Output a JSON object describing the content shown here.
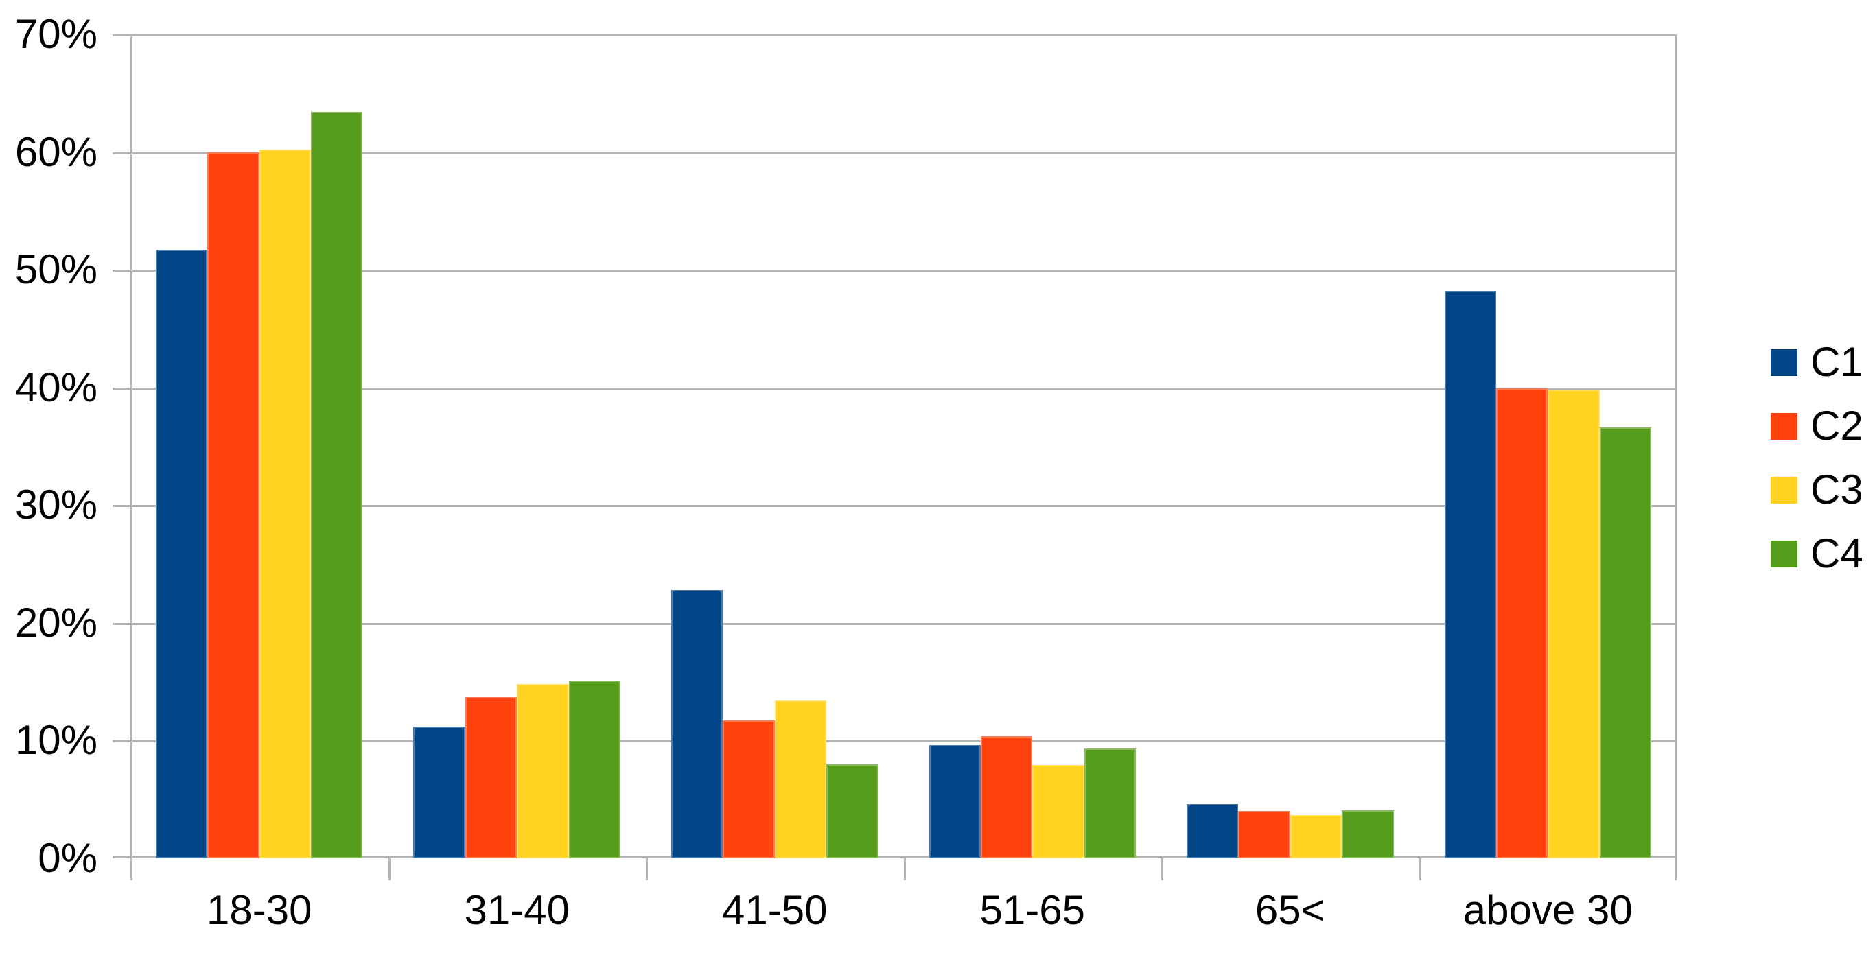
{
  "chart_data": {
    "type": "bar",
    "title": "",
    "categories": [
      "18-30",
      "31-40",
      "41-50",
      "51-65",
      "65<",
      "above 30"
    ],
    "series": [
      {
        "name": "C1",
        "color": "#004586",
        "values": [
          51.7,
          11.2,
          22.8,
          9.6,
          4.6,
          48.2
        ]
      },
      {
        "name": "C2",
        "color": "#FF420E",
        "values": [
          60.0,
          13.7,
          11.7,
          10.4,
          4.0,
          39.9
        ]
      },
      {
        "name": "C3",
        "color": "#FFD320",
        "values": [
          60.2,
          14.8,
          13.4,
          7.9,
          3.7,
          39.8
        ]
      },
      {
        "name": "C4",
        "color": "#579D1C",
        "values": [
          63.4,
          15.1,
          8.0,
          9.3,
          4.1,
          36.6
        ]
      }
    ],
    "xlabel": "",
    "ylabel": "",
    "ylim": [
      0,
      70
    ],
    "ytick_step": 10,
    "ytick_labels": [
      "0%",
      "10%",
      "20%",
      "30%",
      "40%",
      "50%",
      "60%",
      "70%"
    ],
    "grid": true,
    "gridline_color": "#b3b3b3",
    "background_color": "#ffffff",
    "text_color": "#000000",
    "legend_position": "right"
  },
  "legend": {
    "items": [
      {
        "label": "C1",
        "color": "#004586"
      },
      {
        "label": "C2",
        "color": "#FF420E"
      },
      {
        "label": "C3",
        "color": "#FFD320"
      },
      {
        "label": "C4",
        "color": "#579D1C"
      }
    ]
  }
}
